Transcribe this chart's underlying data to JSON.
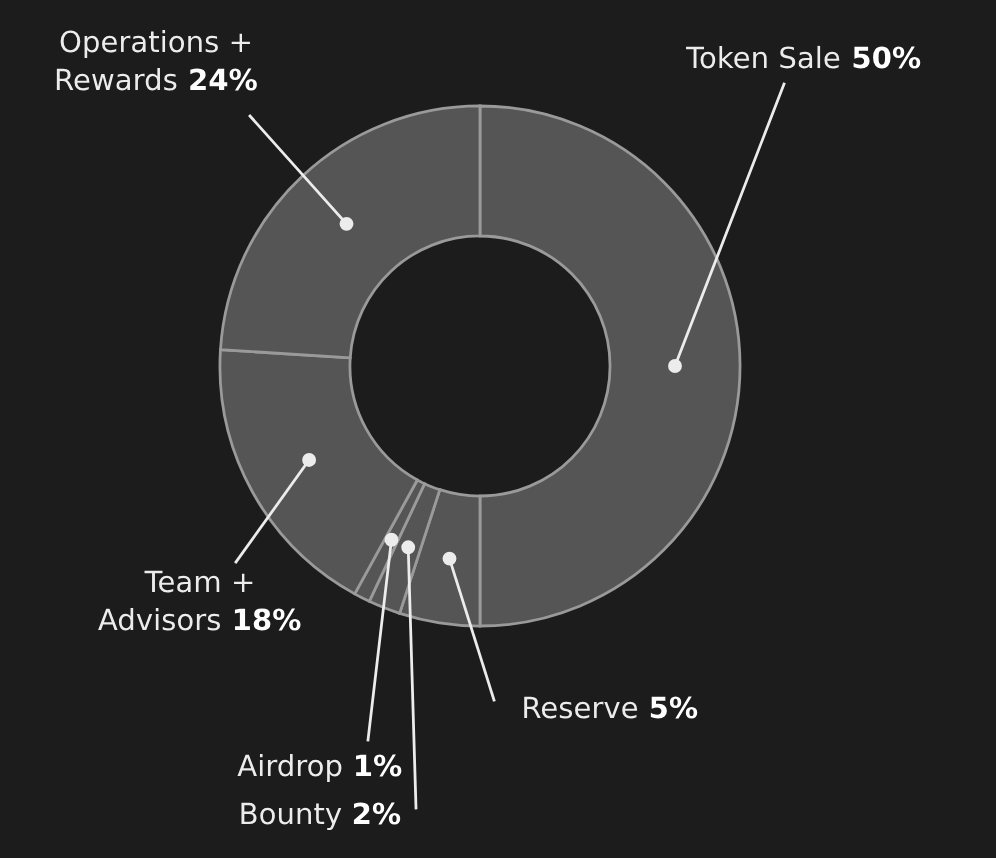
{
  "chart_data": {
    "type": "donut",
    "categories": [
      "Token Sale",
      "Reserve",
      "Bounty",
      "Airdrop",
      "Team + Advisors",
      "Operations + Rewards"
    ],
    "values": [
      50,
      5,
      2,
      1,
      18,
      24
    ],
    "colors": [
      "#555555",
      "#555555",
      "#555555",
      "#555555",
      "#555555",
      "#555555"
    ],
    "value_labels": [
      "50%",
      "5%",
      "2%",
      "1%",
      "18%",
      "24%"
    ],
    "legend": false
  }
}
